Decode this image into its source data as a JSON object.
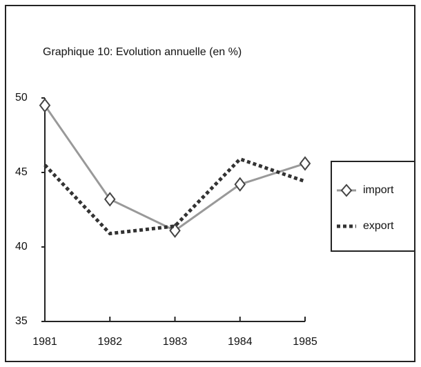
{
  "chart_data": {
    "type": "line",
    "title": "Graphique 10: Evolution annuelle (en %)",
    "categories": [
      "1981",
      "1982",
      "1983",
      "1984",
      "1985"
    ],
    "series": [
      {
        "name": "import",
        "color": "#999999",
        "values": [
          49.5,
          43.2,
          41.1,
          44.2,
          45.6
        ]
      },
      {
        "name": "export",
        "color": "#333333",
        "values": [
          45.5,
          40.9,
          41.4,
          45.9,
          44.4
        ]
      }
    ],
    "ylim": [
      35,
      50
    ],
    "yticks": [
      35,
      40,
      45,
      50
    ],
    "legend": "right"
  }
}
